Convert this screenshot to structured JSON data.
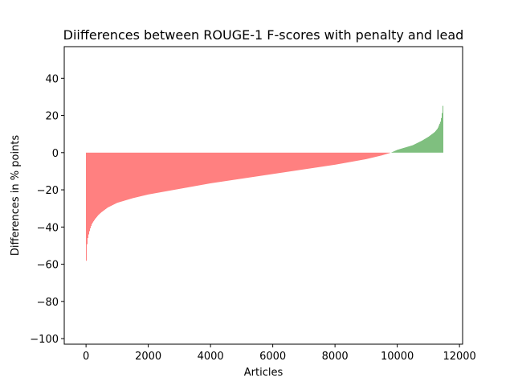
{
  "chart_data": {
    "type": "bar",
    "title": "Diifferences between ROUGE-1 F-scores with penalty and lead",
    "xlabel": "Articles",
    "ylabel": "Differences in % points",
    "xlim": [
      -700,
      12100
    ],
    "ylim": [
      -103,
      57
    ],
    "x_ticks": [
      0,
      2000,
      4000,
      6000,
      8000,
      10000,
      12000
    ],
    "x_tick_labels": [
      "0",
      "2000",
      "4000",
      "6000",
      "8000",
      "10000",
      "12000"
    ],
    "y_ticks": [
      40,
      20,
      0,
      -20,
      -40,
      -60,
      -80,
      -100
    ],
    "y_tick_labels": [
      "40",
      "20",
      "0",
      "−20",
      "−40",
      "−60",
      "−80",
      "−100"
    ],
    "grid": false,
    "legend": "none",
    "n_articles": 11490,
    "sorted_ascending": true,
    "negative_color": "#ff8080",
    "positive_color": "#7fbf7f",
    "series": [
      {
        "x": [
          0,
          30,
          60,
          100,
          150,
          200,
          300,
          400,
          500,
          700,
          1000,
          1500,
          2000,
          2500,
          3000,
          4000,
          5000,
          6000,
          7000,
          8000,
          9000,
          9500,
          9800,
          10000,
          10200,
          10500,
          10800,
          11000,
          11200,
          11300,
          11400,
          11440,
          11480
        ],
        "values": [
          -62,
          -50,
          -46,
          -43,
          -40,
          -38,
          -35.5,
          -33.5,
          -32,
          -29.5,
          -27,
          -24.5,
          -22.5,
          -21,
          -19.5,
          -16.5,
          -14,
          -11.5,
          -9,
          -6.5,
          -3.5,
          -1.5,
          0,
          1.5,
          2.5,
          4,
          6.5,
          8.5,
          11,
          13,
          17,
          21,
          27
        ]
      }
    ]
  }
}
